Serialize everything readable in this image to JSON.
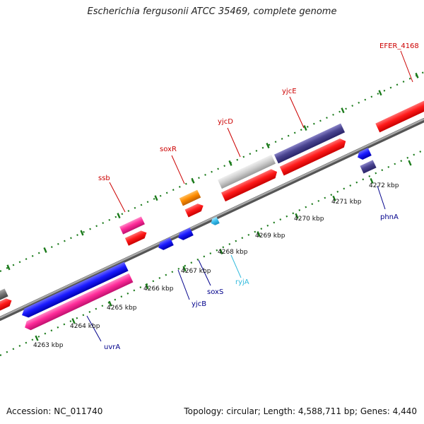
{
  "title": "Escherichia fergusonii ATCC 35469, complete genome",
  "footer": {
    "accession": "Accession: NC_011740",
    "topology": "Topology: circular; Length: 4,588,711 bp; Genes: 4,440"
  },
  "colors": {
    "backbone": "#8a8a8a",
    "ticks": "#1a7a1a",
    "forward_label": "#cc0000",
    "reverse_label": "#00008b",
    "rna_label": "#33bbdd"
  },
  "ticks": [
    "4263 kbp",
    "4264 kbp",
    "4265 kbp",
    "4266 kbp",
    "4267 kbp",
    "4268 kbp",
    "4269 kbp",
    "4270 kbp",
    "4271 kbp",
    "4272 kbp"
  ],
  "genes": {
    "ssb": "ssb",
    "soxR": "soxR",
    "yjcD": "yjcD",
    "yjcE": "yjcE",
    "efer": "EFER_4168",
    "uvrA": "uvrA",
    "yjcB": "yjcB",
    "soxS": "soxS",
    "ryjA": "ryjA",
    "phnA": "phnA"
  }
}
